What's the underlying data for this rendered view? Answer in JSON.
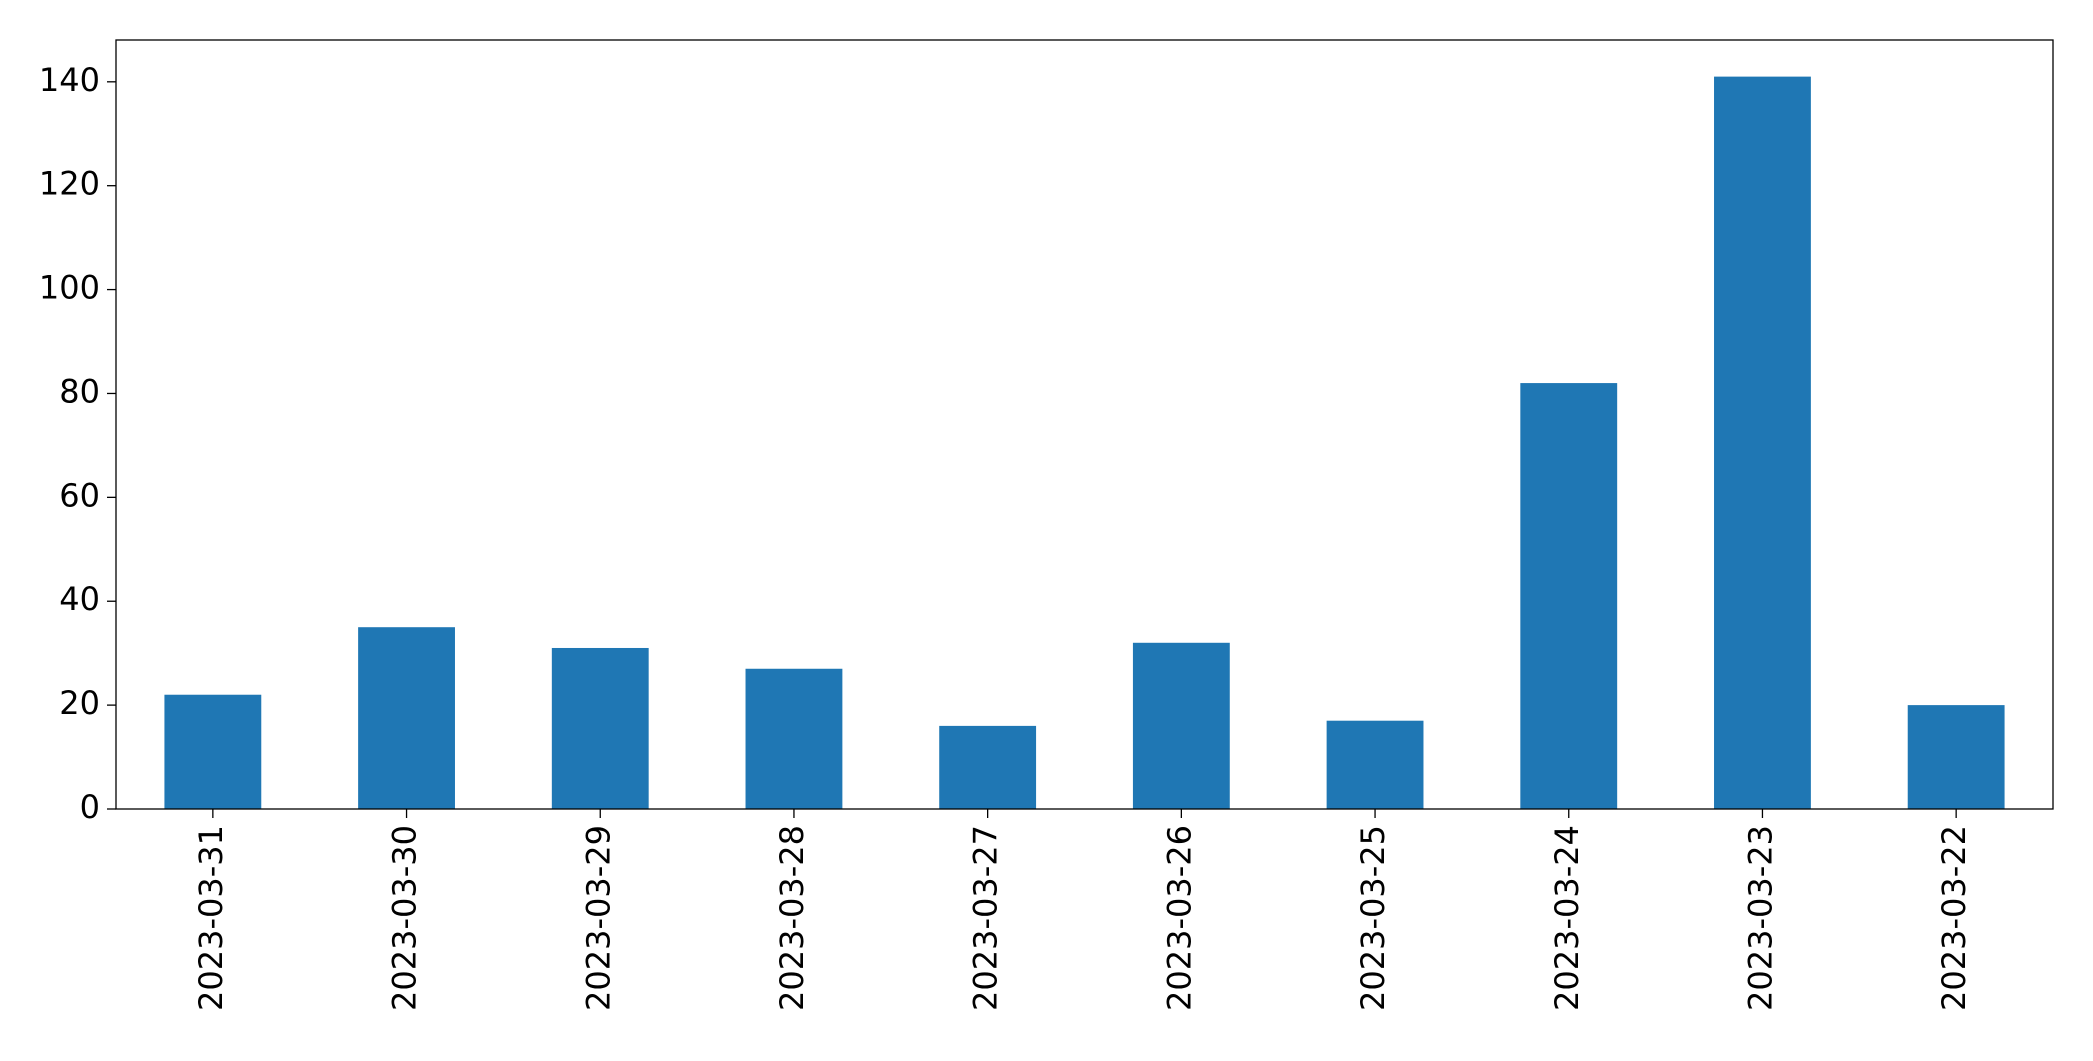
{
  "chart_data": {
    "type": "bar",
    "categories": [
      "2023-03-31",
      "2023-03-30",
      "2023-03-29",
      "2023-03-28",
      "2023-03-27",
      "2023-03-26",
      "2023-03-25",
      "2023-03-24",
      "2023-03-23",
      "2023-03-22"
    ],
    "values": [
      22,
      35,
      31,
      27,
      16,
      32,
      17,
      82,
      141,
      20
    ],
    "color": "#1f77b4",
    "ylim": [
      0,
      148.05
    ],
    "yticks": [
      0,
      20,
      40,
      60,
      80,
      100,
      120,
      140
    ],
    "grid": false
  }
}
